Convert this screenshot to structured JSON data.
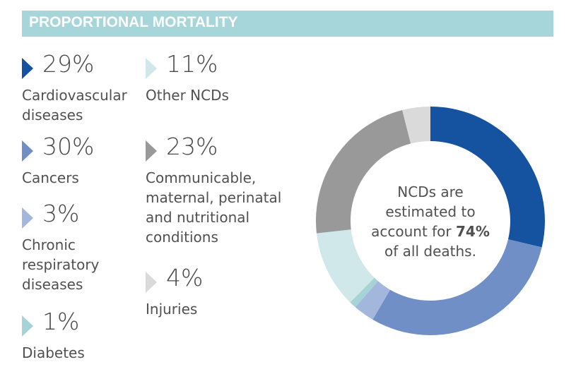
{
  "title": "PROPORTIONAL MORTALITY",
  "center_text": {
    "line1": "NCDs are",
    "line2": "estimated to",
    "line3_prefix": "account for ",
    "line3_bold": "74%",
    "line4": "of all deaths."
  },
  "legend": [
    {
      "pct": "29%",
      "label1": "Cardiovascular",
      "label2": "diseases",
      "label3": ""
    },
    {
      "pct": "30%",
      "label1": "Cancers",
      "label2": "",
      "label3": ""
    },
    {
      "pct": "3%",
      "label1": "Chronic",
      "label2": "respiratory",
      "label3": "diseases"
    },
    {
      "pct": "1%",
      "label1": "Diabetes",
      "label2": "",
      "label3": ""
    },
    {
      "pct": "11%",
      "label1": "Other NCDs",
      "label2": "",
      "label3": ""
    },
    {
      "pct": "23%",
      "label1": "Communicable,",
      "label2": "maternal, perinatal",
      "label3": "and nutritional",
      "label4": "conditions"
    },
    {
      "pct": "4%",
      "label1": "Injuries",
      "label2": "",
      "label3": ""
    }
  ],
  "chart_data": {
    "type": "pie",
    "donut": true,
    "title": "PROPORTIONAL MORTALITY",
    "categories": [
      "Cardiovascular diseases",
      "Cancers",
      "Chronic respiratory diseases",
      "Diabetes",
      "Other NCDs",
      "Communicable, maternal, perinatal and nutritional conditions",
      "Injuries"
    ],
    "values": [
      29,
      30,
      3,
      1,
      11,
      23,
      4
    ],
    "colors": [
      "#1553a1",
      "#6f8fc6",
      "#a3b6db",
      "#a6d3d6",
      "#d1e8ea",
      "#999999",
      "#dadada"
    ],
    "start": "top",
    "direction": "clockwise"
  }
}
